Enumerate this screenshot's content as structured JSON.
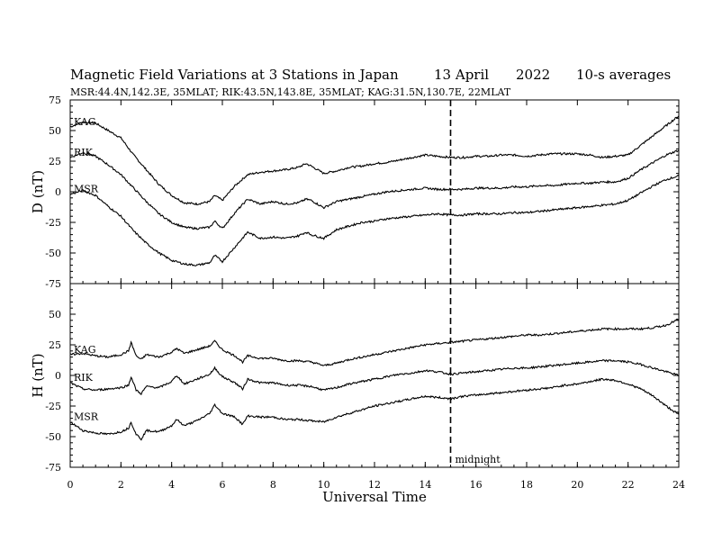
{
  "header": {
    "title": "Magnetic Field Variations at 3 Stations in Japan",
    "date_day_month": "13  April",
    "date_year": "2022",
    "averaging": "10-s averages",
    "stations_line": "MSR:44.4N,142.3E, 35MLAT;  RIK:43.5N,143.8E, 35MLAT;  KAG:31.5N,130.7E, 22MLAT"
  },
  "chart_data": [
    {
      "type": "line",
      "panel": "D",
      "ylabel": "D (nT)",
      "xlim": [
        0,
        24
      ],
      "ylim": [
        -75,
        75
      ],
      "yticks": [
        75,
        50,
        25,
        0,
        -25,
        -50,
        -75
      ],
      "x": [
        0,
        0.5,
        1,
        1.5,
        2,
        2.5,
        3,
        3.5,
        4,
        4.5,
        5,
        5.5,
        5.7,
        6,
        6.5,
        7,
        7.5,
        8,
        8.5,
        9,
        9.3,
        9.5,
        10,
        10.5,
        11,
        11.5,
        12,
        12.5,
        13,
        13.5,
        14,
        14.5,
        15,
        15.5,
        16,
        16.5,
        17,
        17.5,
        18,
        18.5,
        19,
        19.5,
        20,
        20.5,
        21,
        21.5,
        22,
        22.5,
        23,
        23.5,
        24
      ],
      "series": [
        {
          "name": "KAG",
          "values": [
            53,
            57,
            56,
            50,
            44,
            30,
            18,
            6,
            -3,
            -9,
            -10,
            -8,
            -3,
            -7,
            5,
            14,
            16,
            17,
            18,
            20,
            23,
            21,
            15,
            17,
            20,
            21,
            23,
            24,
            26,
            28,
            30,
            29,
            28,
            28,
            29,
            29,
            30,
            30,
            29,
            30,
            31,
            31,
            31,
            30,
            28,
            29,
            30,
            38,
            46,
            54,
            62
          ]
        },
        {
          "name": "RIK",
          "values": [
            28,
            32,
            29,
            22,
            14,
            3,
            -8,
            -18,
            -25,
            -29,
            -30,
            -29,
            -24,
            -30,
            -17,
            -6,
            -10,
            -8,
            -10,
            -9,
            -6,
            -7,
            -13,
            -8,
            -6,
            -4,
            -2,
            0,
            1,
            2,
            3,
            2,
            2,
            2,
            3,
            3,
            3,
            4,
            4,
            5,
            5,
            6,
            7,
            7,
            8,
            8,
            11,
            18,
            24,
            30,
            34
          ]
        },
        {
          "name": "MSR",
          "values": [
            -2,
            1,
            -3,
            -12,
            -20,
            -32,
            -42,
            -50,
            -56,
            -59,
            -60,
            -58,
            -52,
            -57,
            -45,
            -33,
            -38,
            -37,
            -38,
            -36,
            -33,
            -35,
            -38,
            -31,
            -28,
            -25,
            -24,
            -22,
            -21,
            -20,
            -19,
            -18,
            -19,
            -19,
            -18,
            -18,
            -18,
            -17,
            -17,
            -16,
            -15,
            -14,
            -13,
            -12,
            -11,
            -10,
            -7,
            -1,
            5,
            10,
            13
          ]
        }
      ]
    },
    {
      "type": "line",
      "panel": "H",
      "ylabel": "H (nT)",
      "xlabel": "Universal Time",
      "xlim": [
        0,
        24
      ],
      "ylim": [
        -75,
        75
      ],
      "yticks": [
        50,
        25,
        0,
        -25,
        -50,
        -75
      ],
      "xticks": [
        0,
        2,
        4,
        6,
        8,
        10,
        12,
        14,
        16,
        18,
        20,
        22,
        24
      ],
      "x": [
        0,
        0.5,
        1,
        1.5,
        2,
        2.3,
        2.4,
        2.6,
        2.8,
        3,
        3.5,
        4,
        4.2,
        4.5,
        5,
        5.5,
        5.7,
        6,
        6.5,
        6.8,
        7,
        7.5,
        8,
        8.5,
        9,
        9.5,
        10,
        10.5,
        11,
        11.5,
        12,
        12.5,
        13,
        13.5,
        14,
        14.5,
        15,
        15.5,
        16,
        16.5,
        17,
        17.5,
        18,
        18.5,
        19,
        19.5,
        20,
        20.5,
        21,
        21.5,
        22,
        22.5,
        23,
        23.5,
        24
      ],
      "series": [
        {
          "name": "KAG",
          "values": [
            17,
            18,
            16,
            15,
            17,
            20,
            27,
            16,
            13,
            17,
            15,
            19,
            22,
            18,
            21,
            24,
            28,
            21,
            16,
            11,
            16,
            14,
            14,
            12,
            12,
            11,
            8,
            10,
            13,
            15,
            17,
            19,
            21,
            23,
            25,
            26,
            27,
            28,
            29,
            30,
            31,
            32,
            33,
            33,
            34,
            35,
            36,
            37,
            38,
            38,
            38,
            38,
            39,
            41,
            46
          ]
        },
        {
          "name": "RIK",
          "values": [
            -6,
            -11,
            -12,
            -11,
            -10,
            -8,
            -1,
            -12,
            -15,
            -9,
            -10,
            -5,
            0,
            -7,
            -3,
            1,
            6,
            -1,
            -6,
            -11,
            -3,
            -6,
            -6,
            -8,
            -8,
            -9,
            -12,
            -10,
            -7,
            -5,
            -3,
            -1,
            1,
            2,
            4,
            3,
            1,
            2,
            3,
            4,
            5,
            6,
            6,
            7,
            8,
            9,
            10,
            11,
            12,
            12,
            11,
            9,
            6,
            3,
            0
          ]
        },
        {
          "name": "MSR",
          "values": [
            -38,
            -45,
            -47,
            -48,
            -46,
            -43,
            -38,
            -48,
            -52,
            -45,
            -46,
            -41,
            -36,
            -41,
            -37,
            -31,
            -24,
            -31,
            -34,
            -40,
            -33,
            -34,
            -34,
            -36,
            -36,
            -37,
            -38,
            -34,
            -31,
            -28,
            -25,
            -23,
            -21,
            -19,
            -17,
            -18,
            -19,
            -17,
            -16,
            -15,
            -14,
            -13,
            -12,
            -11,
            -10,
            -8,
            -7,
            -5,
            -3,
            -4,
            -7,
            -11,
            -17,
            -25,
            -32
          ]
        }
      ]
    }
  ],
  "annotation": {
    "marker_x": 15,
    "marker_label": "midnight"
  }
}
